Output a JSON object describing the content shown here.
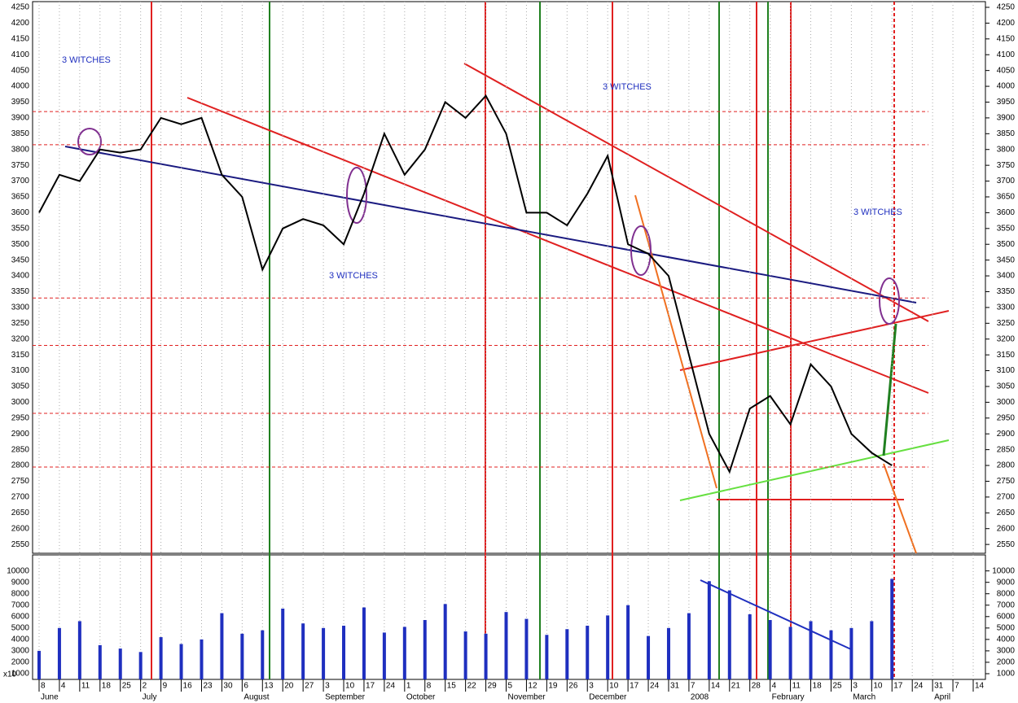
{
  "chart_data": [
    {
      "type": "line",
      "categories": [
        "8",
        "4",
        "11",
        "18",
        "25",
        "2",
        "9",
        "16",
        "23",
        "30",
        "6",
        "13",
        "20",
        "27",
        "3",
        "10",
        "17",
        "24",
        "1",
        "8",
        "15",
        "22",
        "29",
        "5",
        "12",
        "19",
        "26",
        "3",
        "10",
        "17",
        "24",
        "31",
        "7",
        "14",
        "21",
        "28",
        "4",
        "11",
        "18",
        "25",
        "3",
        "10",
        "17",
        "24",
        "31",
        "7",
        "14"
      ],
      "months": [
        "June",
        "July",
        "August",
        "September",
        "October",
        "November",
        "December",
        "2008",
        "February",
        "March",
        "April"
      ],
      "month_index": [
        0,
        5,
        10,
        14,
        18,
        23,
        27,
        32,
        36,
        40,
        44
      ],
      "series": [
        {
          "color": "#000000",
          "values": [
            3600,
            3720,
            3700,
            3800,
            3790,
            3800,
            3900,
            3880,
            3900,
            3720,
            3650,
            3420,
            3550,
            3580,
            3560,
            3500,
            3660,
            3850,
            3720,
            3800,
            3950,
            3900,
            3970,
            3850,
            3600,
            3600,
            3560,
            3660,
            3780,
            3500,
            3470,
            3400,
            3150,
            2900,
            2780,
            2980,
            3020,
            2930,
            3120,
            3050,
            2900,
            2840,
            2800,
            null,
            null,
            null,
            null
          ]
        }
      ],
      "levels": [
        3920,
        3815,
        3330,
        3180,
        2965,
        2795
      ],
      "level_color": "#e02020",
      "annotations": [
        "3 WITCHES",
        "3 WITCHES",
        "3 WITCHES",
        "3 WITCHES"
      ],
      "ylim": [
        2522,
        4268
      ],
      "yticks": [
        2550,
        2600,
        2650,
        2700,
        2750,
        2800,
        2850,
        2900,
        2950,
        3000,
        3050,
        3100,
        3150,
        3200,
        3250,
        3300,
        3350,
        3400,
        3450,
        3500,
        3550,
        3600,
        3650,
        3700,
        3750,
        3800,
        3850,
        3900,
        3950,
        4000,
        4050,
        4100,
        4150,
        4200,
        4250
      ]
    },
    {
      "type": "bar",
      "unit_label": "x10",
      "color": "#1f2fbf",
      "values": [
        3000,
        5000,
        5600,
        3500,
        3200,
        2900,
        4200,
        3600,
        4000,
        6300,
        4500,
        4800,
        6700,
        5400,
        5000,
        5200,
        6800,
        4600,
        5100,
        5700,
        7100,
        4700,
        4500,
        6400,
        5800,
        4400,
        4900,
        5200,
        6100,
        7000,
        4300,
        5000,
        6300,
        9100,
        8300,
        6200,
        5700,
        5100,
        5600,
        4800,
        5000,
        5600,
        9300,
        null,
        null,
        null,
        null
      ],
      "ylim": [
        500,
        11400
      ],
      "yticks": [
        1000,
        2000,
        3000,
        4000,
        5000,
        6000,
        7000,
        8000,
        9000,
        10000
      ]
    }
  ]
}
